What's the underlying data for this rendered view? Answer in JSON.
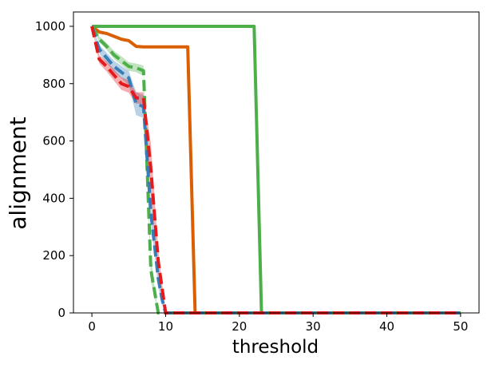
{
  "chart_data": {
    "type": "line",
    "title": "",
    "xlabel": "threshold",
    "ylabel": "alignment",
    "xlim": [
      -2.5,
      52.5
    ],
    "ylim": [
      0,
      1050
    ],
    "xticks": [
      0,
      10,
      20,
      30,
      40,
      50
    ],
    "yticks": [
      0,
      200,
      400,
      600,
      800,
      1000
    ],
    "grid": false,
    "legend": "none",
    "series": [
      {
        "color": "#d95f02",
        "dash": "solid",
        "x": [
          0,
          1,
          2,
          3,
          4,
          5,
          6,
          7,
          8,
          9,
          10,
          11,
          12,
          13,
          14,
          15,
          20,
          30,
          40,
          50
        ],
        "y": [
          1000,
          980,
          975,
          965,
          955,
          950,
          930,
          928,
          928,
          928,
          928,
          928,
          928,
          928,
          0,
          0,
          0,
          0,
          0,
          0
        ],
        "band": [
          0,
          0,
          0,
          0,
          0,
          0,
          0,
          0,
          0,
          0,
          0,
          0,
          0,
          0,
          0,
          0,
          0,
          0,
          0,
          0
        ]
      },
      {
        "color": "#4daf4a",
        "dash": "solid",
        "x": [
          0,
          5,
          10,
          15,
          20,
          22,
          23,
          30,
          40,
          50
        ],
        "y": [
          1000,
          1000,
          1000,
          1000,
          1000,
          1000,
          0,
          0,
          0,
          0
        ],
        "band": [
          0,
          0,
          0,
          0,
          0,
          0,
          0,
          0,
          0,
          0
        ]
      },
      {
        "color": "#4daf4a",
        "dash": "dashed",
        "x": [
          0,
          1,
          2,
          3,
          4,
          5,
          6,
          7,
          8,
          9,
          10,
          20,
          30,
          40,
          50
        ],
        "y": [
          1000,
          955,
          930,
          900,
          880,
          860,
          855,
          845,
          150,
          0,
          0,
          0,
          0,
          0,
          0
        ],
        "band": [
          0,
          10,
          12,
          14,
          15,
          15,
          15,
          18,
          40,
          0,
          0,
          0,
          0,
          0,
          0
        ]
      },
      {
        "color": "#377eb8",
        "dash": "dashed",
        "x": [
          0,
          1,
          2,
          3,
          4,
          5,
          6,
          7,
          8,
          9,
          9.5,
          10,
          20,
          30,
          40,
          50
        ],
        "y": [
          1000,
          920,
          890,
          860,
          840,
          820,
          730,
          720,
          350,
          120,
          50,
          0,
          0,
          0,
          0,
          0
        ],
        "band": [
          0,
          15,
          18,
          20,
          22,
          25,
          40,
          40,
          40,
          30,
          20,
          0,
          0,
          0,
          0,
          0
        ]
      },
      {
        "color": "#e41a1c",
        "dash": "dashed",
        "x": [
          0,
          1,
          2,
          3,
          4,
          5,
          6,
          7,
          8,
          9,
          10,
          20,
          30,
          40,
          50
        ],
        "y": [
          1000,
          885,
          860,
          830,
          800,
          790,
          750,
          750,
          500,
          180,
          0,
          0,
          0,
          0,
          0
        ],
        "band": [
          0,
          15,
          18,
          20,
          22,
          22,
          20,
          20,
          90,
          40,
          0,
          0,
          0,
          0,
          0
        ]
      }
    ]
  }
}
